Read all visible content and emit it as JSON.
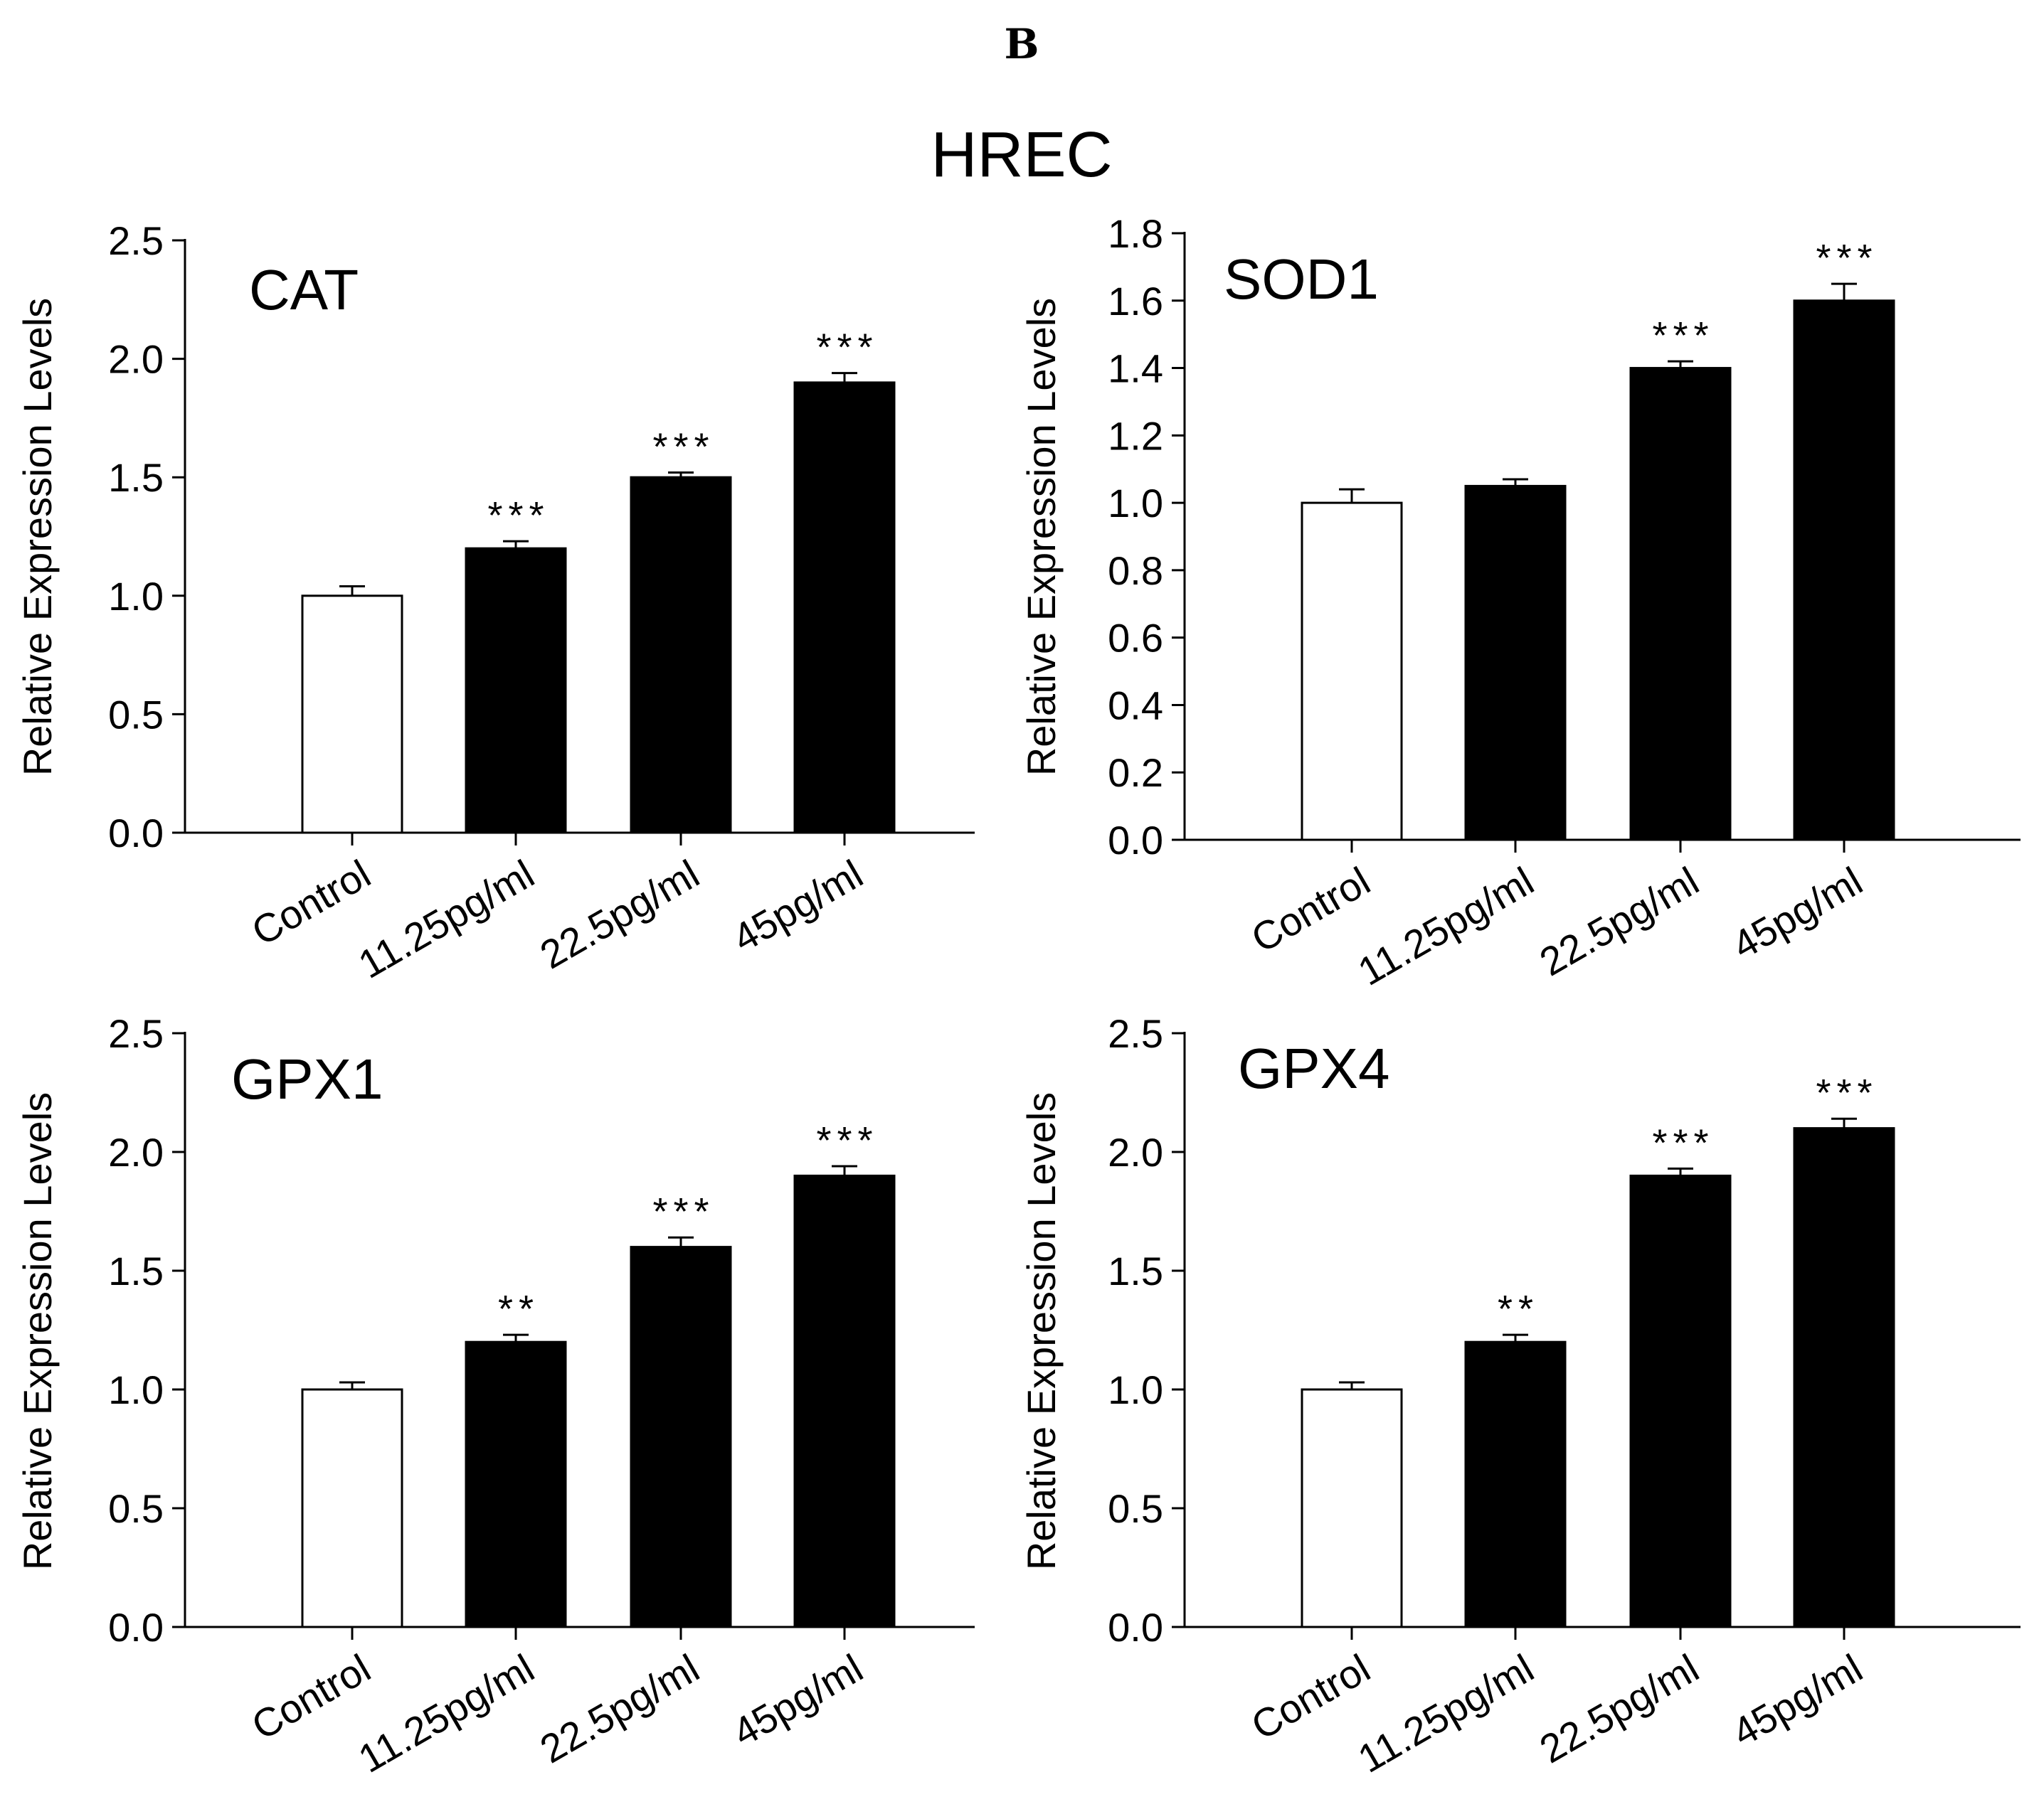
{
  "figure": {
    "panel_letter": "B",
    "title": "HREC"
  },
  "chart_data": [
    {
      "type": "bar",
      "title": "CAT",
      "xlabel": "",
      "ylabel": "Relative Expression Levels",
      "categories": [
        "Control",
        "11.25pg/ml",
        "22.5pg/ml",
        "45pg/ml"
      ],
      "values": [
        1.0,
        1.2,
        1.5,
        1.9
      ],
      "errors": [
        0.04,
        0.03,
        0.02,
        0.04
      ],
      "significance": [
        "",
        "***",
        "***",
        "***"
      ],
      "bar_colors": [
        "#ffffff",
        "#000000",
        "#000000",
        "#000000"
      ],
      "ylim": [
        0,
        2.5
      ],
      "yticks": [
        0.0,
        0.5,
        1.0,
        1.5,
        2.0,
        2.5
      ],
      "yticklabels": [
        "0.0",
        "0.5",
        "1.0",
        "1.5",
        "2.0",
        "2.5"
      ]
    },
    {
      "type": "bar",
      "title": "SOD1",
      "xlabel": "",
      "ylabel": "Relative Expression Levels",
      "categories": [
        "Control",
        "11.25pg/ml",
        "22.5pg/ml",
        "45pg/ml"
      ],
      "values": [
        1.0,
        1.05,
        1.4,
        1.6
      ],
      "errors": [
        0.04,
        0.02,
        0.02,
        0.05
      ],
      "significance": [
        "",
        "",
        "***",
        "***"
      ],
      "bar_colors": [
        "#ffffff",
        "#000000",
        "#000000",
        "#000000"
      ],
      "ylim": [
        0,
        1.8
      ],
      "yticks": [
        0.0,
        0.2,
        0.4,
        0.6,
        0.8,
        1.0,
        1.2,
        1.4,
        1.6,
        1.8
      ],
      "yticklabels": [
        "0.0",
        "0.2",
        "0.4",
        "0.6",
        "0.8",
        "1.0",
        "1.2",
        "1.4",
        "1.6",
        "1.8"
      ]
    },
    {
      "type": "bar",
      "title": "GPX1",
      "xlabel": "",
      "ylabel": "Relative Expression Levels",
      "categories": [
        "Control",
        "11.25pg/ml",
        "22.5pg/ml",
        "45pg/ml"
      ],
      "values": [
        1.0,
        1.2,
        1.6,
        1.9
      ],
      "errors": [
        0.03,
        0.03,
        0.04,
        0.04
      ],
      "significance": [
        "",
        "**",
        "***",
        "***"
      ],
      "bar_colors": [
        "#ffffff",
        "#000000",
        "#000000",
        "#000000"
      ],
      "ylim": [
        0,
        2.5
      ],
      "yticks": [
        0.0,
        0.5,
        1.0,
        1.5,
        2.0,
        2.5
      ],
      "yticklabels": [
        "0.0",
        "0.5",
        "1.0",
        "1.5",
        "2.0",
        "2.5"
      ]
    },
    {
      "type": "bar",
      "title": "GPX4",
      "xlabel": "",
      "ylabel": "Relative Expression Levels",
      "categories": [
        "Control",
        "11.25pg/ml",
        "22.5pg/ml",
        "45pg/ml"
      ],
      "values": [
        1.0,
        1.2,
        1.9,
        2.1
      ],
      "errors": [
        0.03,
        0.03,
        0.03,
        0.04
      ],
      "significance": [
        "",
        "**",
        "***",
        "***"
      ],
      "bar_colors": [
        "#ffffff",
        "#000000",
        "#000000",
        "#000000"
      ],
      "ylim": [
        0,
        2.5
      ],
      "yticks": [
        0.0,
        0.5,
        1.0,
        1.5,
        2.0,
        2.5
      ],
      "yticklabels": [
        "0.0",
        "0.5",
        "1.0",
        "1.5",
        "2.0",
        "2.5"
      ]
    }
  ]
}
